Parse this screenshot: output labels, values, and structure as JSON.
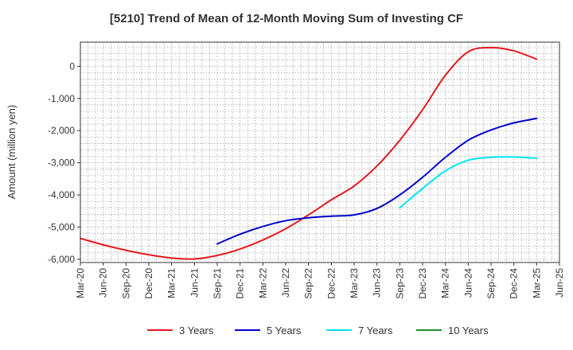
{
  "chart_data": {
    "type": "line",
    "title": "[5210]  Trend of Mean of 12-Month Moving Sum of Investing CF",
    "ylabel": "Amount (million yen)",
    "xlabel": "",
    "ylim": [
      -6100,
      750
    ],
    "yticks": [
      0,
      -1000,
      -2000,
      -3000,
      -4000,
      -5000,
      -6000
    ],
    "ytick_labels": [
      "0",
      "-1,000",
      "-2,000",
      "-3,000",
      "-4,000",
      "-5,000",
      "-6,000"
    ],
    "x_start": "Mar-20",
    "x_end": "Jun-25",
    "xtick_labels": [
      "Mar-20",
      "Jun-20",
      "Sep-20",
      "Dec-20",
      "Mar-21",
      "Jun-21",
      "Sep-21",
      "Dec-21",
      "Mar-22",
      "Jun-22",
      "Sep-22",
      "Dec-22",
      "Mar-23",
      "Jun-23",
      "Sep-23",
      "Dec-23",
      "Mar-24",
      "Jun-24",
      "Sep-24",
      "Dec-24",
      "Mar-25",
      "Jun-25"
    ],
    "grid": true,
    "legend_position": "bottom",
    "series": [
      {
        "name": "3 Years",
        "color": "#e41a1c",
        "x": [
          "Mar-20",
          "Jun-20",
          "Sep-20",
          "Dec-20",
          "Mar-21",
          "Jun-21",
          "Sep-21",
          "Dec-21",
          "Mar-22",
          "Jun-22",
          "Sep-22",
          "Dec-22",
          "Mar-23",
          "Jun-23",
          "Sep-23",
          "Dec-23",
          "Mar-24",
          "Jun-24",
          "Sep-24",
          "Dec-24",
          "Mar-25"
        ],
        "values": [
          -5350,
          -5550,
          -5720,
          -5860,
          -5960,
          -5990,
          -5880,
          -5680,
          -5400,
          -5050,
          -4620,
          -4150,
          -3720,
          -3100,
          -2300,
          -1350,
          -280,
          450,
          580,
          480,
          220
        ]
      },
      {
        "name": "5 Years",
        "color": "#0000cd",
        "x": [
          "Sep-21",
          "Dec-21",
          "Mar-22",
          "Jun-22",
          "Sep-22",
          "Dec-22",
          "Mar-23",
          "Jun-23",
          "Sep-23",
          "Dec-23",
          "Mar-24",
          "Jun-24",
          "Sep-24",
          "Dec-24",
          "Mar-25"
        ],
        "values": [
          -5520,
          -5220,
          -4980,
          -4800,
          -4710,
          -4660,
          -4620,
          -4420,
          -4000,
          -3450,
          -2830,
          -2300,
          -1980,
          -1760,
          -1620
        ]
      },
      {
        "name": "7 Years",
        "color": "#00e5ee",
        "x": [
          "Sep-23",
          "Dec-23",
          "Mar-24",
          "Jun-24",
          "Sep-24",
          "Dec-24",
          "Mar-25"
        ],
        "values": [
          -4400,
          -3800,
          -3250,
          -2920,
          -2830,
          -2820,
          -2860
        ]
      },
      {
        "name": "10 Years",
        "color": "#228b22",
        "x": [],
        "values": []
      }
    ]
  }
}
